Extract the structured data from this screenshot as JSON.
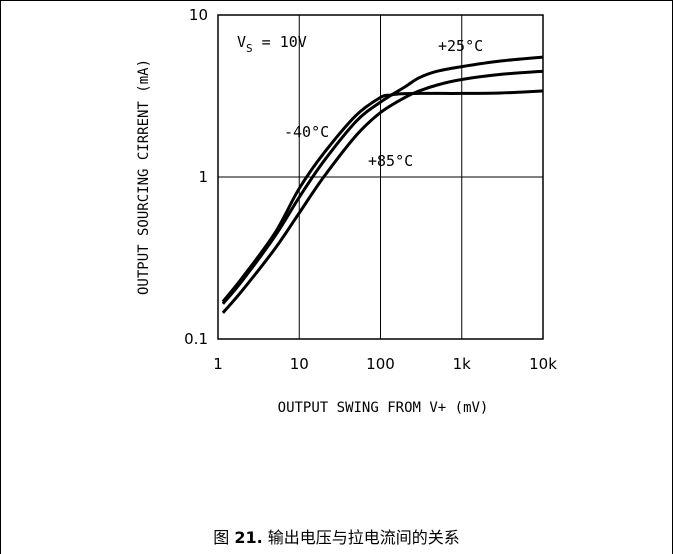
{
  "caption": {
    "prefix": "图 ",
    "number": "21.",
    "text": " 输出电压与拉电流间的关系"
  },
  "chart_data": {
    "type": "line",
    "x_scale": "log",
    "y_scale": "log",
    "xlim": [
      1,
      10000
    ],
    "ylim": [
      0.1,
      10
    ],
    "x_ticks": [
      1,
      10,
      100,
      1000,
      10000
    ],
    "x_tick_labels": [
      "1",
      "10",
      "100",
      "1k",
      "10k"
    ],
    "y_ticks": [
      0.1,
      1,
      10
    ],
    "y_tick_labels": [
      "0.1",
      "1",
      "10"
    ],
    "xlabel": "OUTPUT SWING FROM V+ (mV)",
    "ylabel": "OUTPUT SOURCING CIRRENT (mA)",
    "grid": true,
    "condition_label": {
      "main": "V",
      "sub": "S",
      "rest": " = 10V"
    },
    "series": [
      {
        "name": "-40°C",
        "x": [
          1.15,
          2,
          5,
          10,
          20,
          50,
          100,
          130,
          160,
          200,
          300,
          500,
          1000,
          3000,
          10000
        ],
        "y": [
          0.17,
          0.24,
          0.45,
          0.85,
          1.4,
          2.4,
          3.1,
          3.2,
          3.25,
          3.27,
          3.28,
          3.28,
          3.28,
          3.3,
          3.4
        ]
      },
      {
        "name": "+25°C",
        "x": [
          1.15,
          2,
          5,
          10,
          20,
          50,
          100,
          200,
          300,
          500,
          1000,
          3000,
          10000
        ],
        "y": [
          0.165,
          0.23,
          0.43,
          0.75,
          1.25,
          2.2,
          2.9,
          3.6,
          4.1,
          4.5,
          4.8,
          5.2,
          5.5
        ]
      },
      {
        "name": "+85°C",
        "x": [
          1.15,
          2,
          5,
          10,
          20,
          50,
          100,
          200,
          300,
          500,
          1000,
          3000,
          10000
        ],
        "y": [
          0.145,
          0.2,
          0.36,
          0.6,
          1.0,
          1.8,
          2.5,
          3.1,
          3.4,
          3.7,
          4.0,
          4.3,
          4.5
        ]
      }
    ],
    "annotations": [
      "-40°C",
      "+25°C",
      "+85°C"
    ]
  }
}
